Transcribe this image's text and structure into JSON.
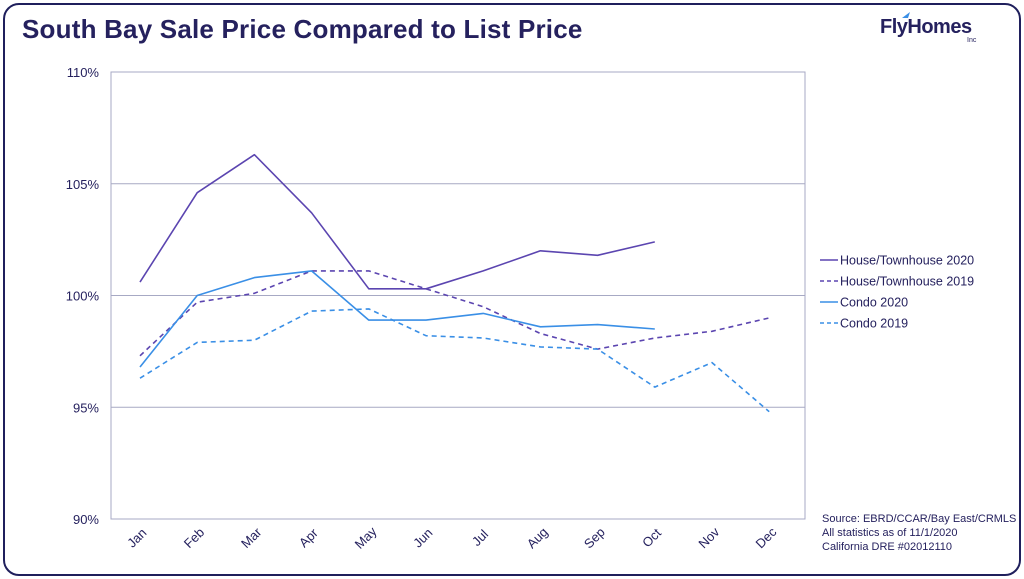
{
  "title": "South Bay Sale Price Compared to List Price",
  "logo": {
    "text": "FlyHomes",
    "sub": "Inc"
  },
  "source": [
    "Source: EBRD/CCAR/Bay East/CRMLS",
    "All statistics as of 11/1/2020",
    "California DRE #02012110"
  ],
  "colors": {
    "purple": "#5b45b0",
    "blue": "#3a8fe6",
    "grid": "#a7a9c4",
    "text": "#25215e"
  },
  "chart_data": {
    "type": "line",
    "categories": [
      "Jan",
      "Feb",
      "Mar",
      "Apr",
      "May",
      "Jun",
      "Jul",
      "Aug",
      "Sep",
      "Oct",
      "Nov",
      "Dec"
    ],
    "ylim": [
      90,
      110
    ],
    "yticks": [
      90,
      95,
      100,
      105,
      110
    ],
    "ytick_labels": [
      "90%",
      "95%",
      "100%",
      "105%",
      "110%"
    ],
    "grid": true,
    "legend_position": "right",
    "series": [
      {
        "name": "House/Townhouse 2020",
        "style": "solid",
        "color": "#5b45b0",
        "values": [
          100.6,
          104.6,
          106.3,
          103.7,
          100.3,
          100.3,
          101.1,
          102.0,
          101.8,
          102.4,
          null,
          null
        ]
      },
      {
        "name": "House/Townhouse 2019",
        "style": "dashed",
        "color": "#5b45b0",
        "values": [
          97.3,
          99.7,
          100.1,
          101.1,
          101.1,
          100.3,
          99.5,
          98.3,
          97.6,
          98.1,
          98.4,
          99.0
        ]
      },
      {
        "name": "Condo 2020",
        "style": "solid",
        "color": "#3a8fe6",
        "values": [
          96.8,
          100.0,
          100.8,
          101.1,
          98.9,
          98.9,
          99.2,
          98.6,
          98.7,
          98.5,
          null,
          null
        ]
      },
      {
        "name": "Condo 2019",
        "style": "dashed",
        "color": "#3a8fe6",
        "values": [
          96.3,
          97.9,
          98.0,
          99.3,
          99.4,
          98.2,
          98.1,
          97.7,
          97.6,
          95.9,
          97.0,
          94.8
        ]
      }
    ]
  }
}
